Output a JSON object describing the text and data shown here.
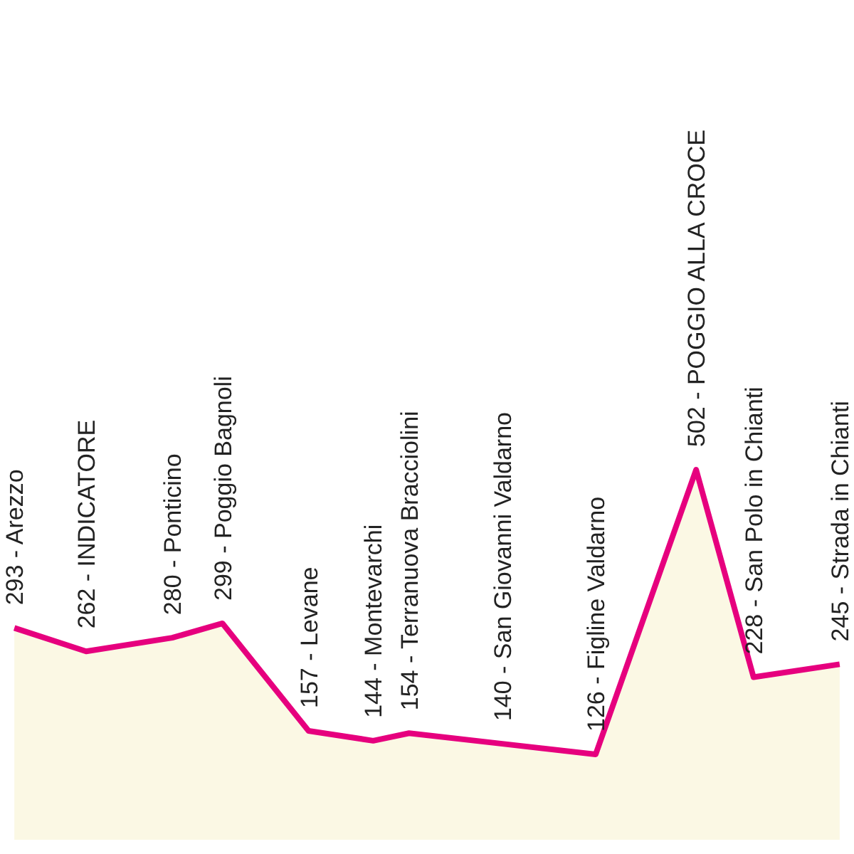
{
  "chart_data": {
    "type": "area",
    "categories": [
      null,
      null,
      null,
      null,
      null,
      null,
      null,
      null,
      null,
      null,
      null,
      null,
      null,
      null,
      null,
      null,
      null,
      null,
      null,
      null,
      null,
      null,
      null,
      null,
      null,
      null,
      null,
      null,
      null,
      null,
      null,
      null,
      null,
      null,
      null,
      null,
      null,
      null,
      null,
      null,
      null,
      null,
      null,
      null,
      null,
      null,
      null,
      null,
      null,
      null,
      null,
      null,
      null,
      null,
      null,
      null,
      null,
      null,
      null,
      null,
      null,
      null,
      null,
      null,
      null,
      null,
      null,
      null,
      null,
      null,
      null,
      null,
      null,
      null,
      null,
      null,
      null,
      null,
      null,
      null,
      null,
      null,
      null,
      null,
      null,
      null,
      null,
      null,
      null,
      null,
      null,
      null,
      null,
      null,
      null,
      null,
      null,
      null,
      null,
      null,
      null,
      null,
      null,
      null,
      null,
      null,
      null,
      null,
      null,
      null,
      null,
      null,
      null,
      null,
      null,
      null,
      null,
      null,
      null,
      null
    ],
    "series": [
      {
        "color": "#e6007e",
        "values": [
          null,
          null,
          293,
          null,
          null,
          null,
          null,
          null,
          null,
          null,
          null,
          null,
          262,
          null,
          null,
          null,
          null,
          null,
          null,
          null,
          null,
          null,
          null,
          null,
          280,
          null,
          null,
          null,
          null,
          null,
          null,
          299,
          null,
          null,
          null,
          null,
          null,
          null,
          null,
          null,
          null,
          null,
          null,
          157,
          null,
          null,
          null,
          null,
          null,
          null,
          null,
          null,
          144,
          null,
          null,
          null,
          null,
          154,
          null,
          null,
          null,
          null,
          null,
          null,
          null,
          null,
          null,
          null,
          null,
          null,
          140,
          null,
          null,
          null,
          null,
          null,
          null,
          null,
          null,
          null,
          null,
          null,
          null,
          126,
          null,
          null,
          null,
          null,
          null,
          null,
          null,
          null,
          null,
          null,
          null,
          null,
          null,
          502,
          null,
          null,
          null,
          null,
          null,
          null,
          null,
          228,
          null,
          null,
          null,
          null,
          null,
          null,
          null,
          null,
          null,
          null,
          null,
          245,
          null,
          null
        ],
        "value_labels": [
          null,
          null,
          "293 - Arezzo",
          null,
          null,
          null,
          null,
          null,
          null,
          null,
          null,
          null,
          "262 - INDICATORE",
          null,
          null,
          null,
          null,
          null,
          null,
          null,
          null,
          null,
          null,
          null,
          "280 - Ponticino",
          null,
          null,
          null,
          null,
          null,
          null,
          "299 - Poggio Bagnoli",
          null,
          null,
          null,
          null,
          null,
          null,
          null,
          null,
          null,
          null,
          null,
          "157 - Levane",
          null,
          null,
          null,
          null,
          null,
          null,
          null,
          null,
          "144 - Montevarchi",
          null,
          null,
          null,
          null,
          "154 - Terranuova Bracciolini",
          null,
          null,
          null,
          null,
          null,
          null,
          null,
          null,
          null,
          null,
          null,
          null,
          "140 - San Giovanni Valdarno",
          null,
          null,
          null,
          null,
          null,
          null,
          null,
          null,
          null,
          null,
          null,
          null,
          "126 - Figline Valdarno",
          null,
          null,
          null,
          null,
          null,
          null,
          null,
          null,
          null,
          null,
          null,
          null,
          null,
          "502 - POGGIO ALLA CROCE",
          null,
          null,
          null,
          null,
          null,
          null,
          null,
          "228 - San Polo in Chianti",
          null,
          null,
          null,
          null,
          null,
          null,
          null,
          null,
          null,
          null,
          null,
          "245 - Strada in Chianti",
          null,
          null
        ]
      }
    ]
  }
}
